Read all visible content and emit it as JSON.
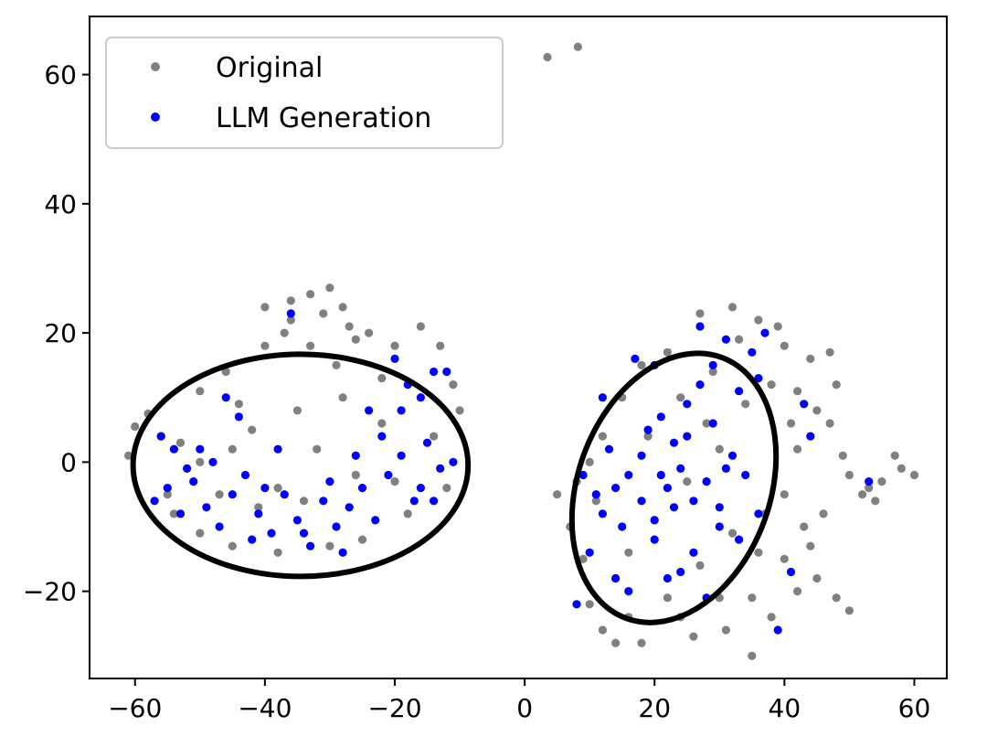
{
  "chart_data": {
    "type": "scatter",
    "title": "",
    "xlabel": "",
    "ylabel": "",
    "xlim": [
      -67,
      65
    ],
    "ylim": [
      -33.5,
      69
    ],
    "xticks": [
      -60,
      -40,
      -20,
      0,
      20,
      40,
      60
    ],
    "xtick_labels": [
      "−60",
      "−40",
      "−20",
      "0",
      "20",
      "40",
      "60"
    ],
    "yticks": [
      -20,
      0,
      20,
      40,
      60
    ],
    "ytick_labels": [
      "−20",
      "0",
      "20",
      "40",
      "60"
    ],
    "grid": false,
    "legend_position": "top-left",
    "series": [
      {
        "name": "Original",
        "color": "#808080",
        "points": [
          [
            3.5,
            62.7
          ],
          [
            8.2,
            64.3
          ],
          [
            -60,
            5.5
          ],
          [
            -58,
            7.5
          ],
          [
            -56,
            4
          ],
          [
            -61,
            1
          ],
          [
            -55,
            -5
          ],
          [
            -50,
            11
          ],
          [
            -46,
            14
          ],
          [
            -40,
            18
          ],
          [
            -36,
            22
          ],
          [
            -33,
            26
          ],
          [
            -30,
            27
          ],
          [
            -28,
            24
          ],
          [
            -24,
            20
          ],
          [
            -20,
            18
          ],
          [
            -16,
            21
          ],
          [
            -13,
            18
          ],
          [
            -11,
            12
          ],
          [
            -10,
            8
          ],
          [
            -14,
            4
          ],
          [
            -12,
            -4
          ],
          [
            -18,
            -8
          ],
          [
            -25,
            -12
          ],
          [
            -30,
            -13
          ],
          [
            -38,
            -14
          ],
          [
            -45,
            -13
          ],
          [
            -50,
            -11
          ],
          [
            -54,
            -8
          ],
          [
            -42,
            5
          ],
          [
            -35,
            8
          ],
          [
            -28,
            10
          ],
          [
            -22,
            6
          ],
          [
            -32,
            2
          ],
          [
            -38,
            -4
          ],
          [
            -26,
            -2
          ],
          [
            -20,
            -3
          ],
          [
            -45,
            2
          ],
          [
            -50,
            0
          ],
          [
            -41,
            -7
          ],
          [
            -34,
            -6
          ],
          [
            -29,
            15
          ],
          [
            -37,
            20
          ],
          [
            -31,
            23
          ],
          [
            -26,
            19
          ],
          [
            -22,
            13
          ],
          [
            -47,
            -5
          ],
          [
            -53,
            3
          ],
          [
            -44,
            9
          ],
          [
            -33,
            18
          ],
          [
            -40,
            24
          ],
          [
            -36,
            25
          ],
          [
            -27,
            21
          ],
          [
            5,
            -5
          ],
          [
            7,
            -10
          ],
          [
            9,
            -15
          ],
          [
            10,
            -22
          ],
          [
            12,
            -26
          ],
          [
            14,
            -28
          ],
          [
            18,
            -28
          ],
          [
            24,
            -24
          ],
          [
            30,
            -21
          ],
          [
            35,
            -21
          ],
          [
            38,
            -24
          ],
          [
            42,
            -20
          ],
          [
            45,
            -18
          ],
          [
            48,
            -21
          ],
          [
            50,
            -23
          ],
          [
            40,
            -15
          ],
          [
            44,
            -13
          ],
          [
            35,
            -30
          ],
          [
            40,
            -5
          ],
          [
            42,
            2
          ],
          [
            45,
            8
          ],
          [
            48,
            12
          ],
          [
            44,
            16
          ],
          [
            40,
            18
          ],
          [
            36,
            22
          ],
          [
            32,
            24
          ],
          [
            27,
            23
          ],
          [
            22,
            17
          ],
          [
            18,
            15
          ],
          [
            15,
            10
          ],
          [
            12,
            4
          ],
          [
            10,
            0
          ],
          [
            50,
            -2
          ],
          [
            52,
            -5
          ],
          [
            55,
            -3
          ],
          [
            58,
            -1
          ],
          [
            60,
            -2
          ],
          [
            57,
            1
          ],
          [
            54,
            -6
          ],
          [
            47,
            6
          ],
          [
            38,
            12
          ],
          [
            33,
            19
          ],
          [
            28,
            6
          ],
          [
            25,
            -3
          ],
          [
            20,
            -9
          ],
          [
            16,
            -14
          ],
          [
            14,
            -18
          ],
          [
            22,
            -21
          ],
          [
            27,
            -16
          ],
          [
            32,
            -11
          ],
          [
            36,
            -14
          ],
          [
            46,
            -8
          ],
          [
            49,
            1
          ],
          [
            53,
            -4
          ],
          [
            30,
            2
          ],
          [
            19,
            4
          ],
          [
            11,
            -6
          ],
          [
            8,
            -3
          ],
          [
            24,
            10
          ],
          [
            29,
            14
          ],
          [
            34,
            9
          ],
          [
            41,
            6
          ],
          [
            43,
            -10
          ],
          [
            37,
            -8
          ],
          [
            31,
            -26
          ],
          [
            26,
            -27
          ],
          [
            16,
            -24
          ],
          [
            39,
            21
          ],
          [
            42,
            11
          ],
          [
            47,
            17
          ]
        ]
      },
      {
        "name": "LLM Generation",
        "color": "#0000ff",
        "points": [
          [
            -57,
            -6
          ],
          [
            -55,
            -4
          ],
          [
            -53,
            -8
          ],
          [
            -51,
            -3
          ],
          [
            -49,
            -7
          ],
          [
            -47,
            -10
          ],
          [
            -45,
            -5
          ],
          [
            -43,
            -2
          ],
          [
            -41,
            -8
          ],
          [
            -39,
            -11
          ],
          [
            -37,
            -5
          ],
          [
            -35,
            -9
          ],
          [
            -33,
            -13
          ],
          [
            -31,
            -6
          ],
          [
            -29,
            -10
          ],
          [
            -27,
            -7
          ],
          [
            -25,
            -4
          ],
          [
            -23,
            -9
          ],
          [
            -21,
            -2
          ],
          [
            -19,
            1
          ],
          [
            -17,
            -6
          ],
          [
            -15,
            3
          ],
          [
            -13,
            -1
          ],
          [
            -18,
            12
          ],
          [
            -14,
            14
          ],
          [
            -20,
            16
          ],
          [
            -24,
            8
          ],
          [
            -22,
            4
          ],
          [
            -19,
            8
          ],
          [
            -16,
            10
          ],
          [
            -12,
            14
          ],
          [
            -44,
            7
          ],
          [
            -46,
            10
          ],
          [
            -36,
            23
          ],
          [
            -42,
            -12
          ],
          [
            -50,
            2
          ],
          [
            -52,
            -1
          ],
          [
            -48,
            0
          ],
          [
            -38,
            2
          ],
          [
            -30,
            -3
          ],
          [
            -26,
            1
          ],
          [
            -34,
            -11
          ],
          [
            -28,
            -14
          ],
          [
            -16,
            -4
          ],
          [
            -11,
            0
          ],
          [
            -14,
            -6
          ],
          [
            -40,
            -4
          ],
          [
            -56,
            4
          ],
          [
            -54,
            2
          ],
          [
            8,
            -22
          ],
          [
            10,
            -14
          ],
          [
            12,
            -8
          ],
          [
            14,
            -4
          ],
          [
            16,
            -2
          ],
          [
            18,
            -6
          ],
          [
            20,
            -9
          ],
          [
            22,
            -4
          ],
          [
            24,
            -1
          ],
          [
            26,
            -6
          ],
          [
            28,
            -3
          ],
          [
            30,
            -7
          ],
          [
            32,
            1
          ],
          [
            34,
            -2
          ],
          [
            19,
            5
          ],
          [
            21,
            7
          ],
          [
            23,
            3
          ],
          [
            25,
            9
          ],
          [
            27,
            12
          ],
          [
            29,
            15
          ],
          [
            31,
            19
          ],
          [
            33,
            11
          ],
          [
            35,
            17
          ],
          [
            37,
            20
          ],
          [
            17,
            16
          ],
          [
            27,
            21
          ],
          [
            14,
            -18
          ],
          [
            16,
            -20
          ],
          [
            22,
            -18
          ],
          [
            24,
            -17
          ],
          [
            28,
            -21
          ],
          [
            33,
            -12
          ],
          [
            36,
            -8
          ],
          [
            41,
            -17
          ],
          [
            39,
            -26
          ],
          [
            44,
            4
          ],
          [
            43,
            9
          ],
          [
            53,
            -3
          ],
          [
            15,
            -10
          ],
          [
            11,
            -5
          ],
          [
            9,
            -2
          ],
          [
            13,
            2
          ],
          [
            20,
            -12
          ],
          [
            26,
            -14
          ],
          [
            30,
            -10
          ],
          [
            23,
            -7
          ],
          [
            18,
            1
          ],
          [
            21,
            -2
          ],
          [
            25,
            4
          ],
          [
            29,
            6
          ],
          [
            31,
            -1
          ],
          [
            12,
            10
          ],
          [
            36,
            13
          ],
          [
            20,
            15
          ]
        ]
      }
    ],
    "annotations": [
      {
        "shape": "ellipse",
        "center": [
          -34.5,
          -0.5
        ],
        "rx": 25.8,
        "ry": 17.2,
        "rotation": 0
      },
      {
        "shape": "ellipse",
        "center": [
          23,
          -4
        ],
        "rx": 14.8,
        "ry": 21.5,
        "rotation": -20
      }
    ]
  }
}
